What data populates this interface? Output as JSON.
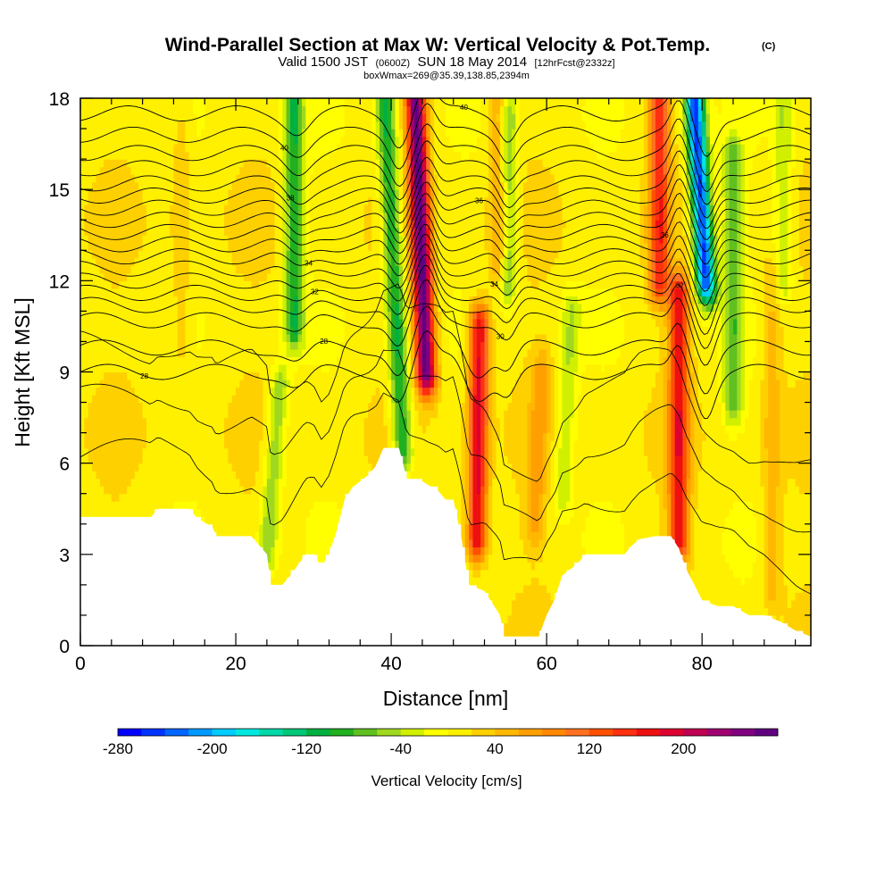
{
  "chart_data": {
    "type": "heatmap",
    "title": "Wind-Parallel Section at Max W: Vertical Velocity & Pot.Temp.",
    "title_mark": "(C)",
    "subtitle_parts": [
      "Valid 1500 JST",
      "(0600Z)",
      "SUN 18 May 2014",
      "[12hrFcst@2332z]"
    ],
    "subtitle2": "boxWmax=269@35.39,138.85,2394m",
    "xlabel": "Distance [nm]",
    "ylabel": "Height [Kft MSL]",
    "xlim": [
      0,
      94
    ],
    "ylim": [
      0,
      18
    ],
    "x_ticks": [
      0,
      20,
      40,
      60,
      80
    ],
    "y_ticks": [
      0,
      3,
      6,
      9,
      12,
      15,
      18
    ],
    "colorbar": {
      "label": "Vertical Velocity [cm/s]",
      "tick_values": [
        -280,
        -200,
        -120,
        -40,
        40,
        120,
        200
      ],
      "tick_labels": [
        "-280",
        "-200",
        "-120",
        "-40",
        "40",
        "120",
        "200"
      ],
      "levels": [
        -280,
        -260,
        -240,
        -220,
        -200,
        -180,
        -160,
        -140,
        -120,
        -100,
        -80,
        -60,
        -40,
        -20,
        0,
        20,
        40,
        60,
        80,
        100,
        120,
        140,
        160,
        180,
        200,
        220,
        240,
        260
      ],
      "colors": [
        "#0000ff",
        "#0033ff",
        "#0066ff",
        "#0099ff",
        "#00ccff",
        "#00e8e0",
        "#00d8a8",
        "#00c878",
        "#00b040",
        "#20b020",
        "#60c020",
        "#a0d820",
        "#d0f000",
        "#ffff00",
        "#fff000",
        "#ffd000",
        "#ffb800",
        "#ffa000",
        "#ff8800",
        "#ff7020",
        "#ff5000",
        "#ff3010",
        "#ee1010",
        "#dd0030",
        "#c00050",
        "#a00070",
        "#800080",
        "#600080"
      ]
    },
    "terrain": [
      [
        0,
        4.2
      ],
      [
        3,
        4.2
      ],
      [
        6,
        4.2
      ],
      [
        9,
        4.2
      ],
      [
        10,
        4.5
      ],
      [
        14,
        4.5
      ],
      [
        15,
        4.2
      ],
      [
        17,
        3.9
      ],
      [
        17.5,
        3.6
      ],
      [
        18,
        3.6
      ],
      [
        20,
        3.6
      ],
      [
        22,
        3.6
      ],
      [
        24,
        3.0
      ],
      [
        24.5,
        2.0
      ],
      [
        26,
        2.0
      ],
      [
        27,
        2.3
      ],
      [
        29,
        3.0
      ],
      [
        30,
        3.0
      ],
      [
        31,
        2.6
      ],
      [
        32,
        3.0
      ],
      [
        33,
        3.8
      ],
      [
        34,
        4.8
      ],
      [
        35,
        5.2
      ],
      [
        36,
        5.4
      ],
      [
        37,
        5.6
      ],
      [
        38,
        5.9
      ],
      [
        39,
        6.5
      ],
      [
        41,
        6.5
      ],
      [
        42,
        5.5
      ],
      [
        44,
        5.4
      ],
      [
        46,
        5.1
      ],
      [
        47,
        4.8
      ],
      [
        48,
        4.8
      ],
      [
        49,
        3.6
      ],
      [
        50,
        2.0
      ],
      [
        52,
        1.8
      ],
      [
        53,
        1.4
      ],
      [
        54,
        1.0
      ],
      [
        54.5,
        0.3
      ],
      [
        56,
        0.3
      ],
      [
        59,
        0.3
      ],
      [
        60,
        1.0
      ],
      [
        61,
        1.5
      ],
      [
        62,
        2.3
      ],
      [
        64,
        2.7
      ],
      [
        65,
        3.0
      ],
      [
        67,
        3.0
      ],
      [
        69,
        3.0
      ],
      [
        70,
        3.0
      ],
      [
        71,
        3.3
      ],
      [
        72,
        3.5
      ],
      [
        74,
        3.6
      ],
      [
        76,
        3.6
      ],
      [
        77,
        3.2
      ],
      [
        78,
        2.5
      ],
      [
        79,
        2.0
      ],
      [
        80,
        1.5
      ],
      [
        82,
        1.3
      ],
      [
        84,
        1.3
      ],
      [
        86,
        1.0
      ],
      [
        88,
        1.0
      ],
      [
        90,
        0.8
      ],
      [
        92,
        0.5
      ],
      [
        94,
        0.3
      ]
    ],
    "updrafts": [
      {
        "x": 44.5,
        "z0": 9.0,
        "z1": 18,
        "w": 260,
        "tilt": -0.15
      },
      {
        "x": 51.0,
        "z0": 3.5,
        "z1": 10.5,
        "w": 180,
        "tilt": 0.05
      },
      {
        "x": 77.0,
        "z0": 3.5,
        "z1": 11.5,
        "w": 160,
        "tilt": 0.0
      },
      {
        "x": 74.5,
        "z0": 12.0,
        "z1": 18,
        "w": 140,
        "tilt": 0.0
      },
      {
        "x": 54.0,
        "z0": 12.5,
        "z1": 18,
        "w": 70,
        "tilt": 0.0
      },
      {
        "x": 58.5,
        "z0": 4.0,
        "z1": 9.0,
        "w": 50,
        "tilt": 0.15
      },
      {
        "x": 13.0,
        "z0": 10.0,
        "z1": 17.0,
        "w": 30,
        "tilt": 0.0
      },
      {
        "x": 89.0,
        "z0": 2.0,
        "z1": 12.0,
        "w": 40,
        "tilt": 0.0
      }
    ],
    "downdrafts": [
      {
        "x": 80.5,
        "z0": 12.0,
        "z1": 18,
        "w": -260,
        "tilt": -0.25
      },
      {
        "x": 41.5,
        "z0": 6.5,
        "z1": 18,
        "w": -120,
        "tilt": -0.2
      },
      {
        "x": 27.5,
        "z0": 10.5,
        "z1": 18,
        "w": -110,
        "tilt": 0.0
      },
      {
        "x": 55.0,
        "z0": 12.0,
        "z1": 17.5,
        "w": -90,
        "tilt": 0.0
      },
      {
        "x": 24.0,
        "z0": 3.0,
        "z1": 8.5,
        "w": -70,
        "tilt": 0.3
      },
      {
        "x": 62.0,
        "z0": 5.0,
        "z1": 11.0,
        "w": -50,
        "tilt": 0.2
      },
      {
        "x": 84.0,
        "z0": 8.0,
        "z1": 16.0,
        "w": -80,
        "tilt": 0.0
      },
      {
        "x": 90.5,
        "z0": 12.0,
        "z1": 18,
        "w": -50,
        "tilt": 0.0
      }
    ],
    "theta_contours": [
      {
        "z": 9.0,
        "label": "28"
      },
      {
        "z": 9.8,
        "label": "28"
      },
      {
        "z": 10.7,
        "label": "30"
      },
      {
        "z": 11.2,
        "label": "32"
      },
      {
        "z": 11.6,
        "label": "32"
      },
      {
        "z": 12.0,
        "label": "34"
      },
      {
        "z": 12.4,
        "label": ""
      },
      {
        "z": 12.8,
        "label": "34"
      },
      {
        "z": 13.2,
        "label": ""
      },
      {
        "z": 13.6,
        "label": "36"
      },
      {
        "z": 14.0,
        "label": ""
      },
      {
        "z": 14.4,
        "label": "36"
      },
      {
        "z": 14.8,
        "label": ""
      },
      {
        "z": 15.2,
        "label": "38"
      },
      {
        "z": 15.7,
        "label": ""
      },
      {
        "z": 16.2,
        "label": ""
      },
      {
        "z": 16.8,
        "label": "40"
      },
      {
        "z": 17.5,
        "label": "40"
      }
    ]
  }
}
